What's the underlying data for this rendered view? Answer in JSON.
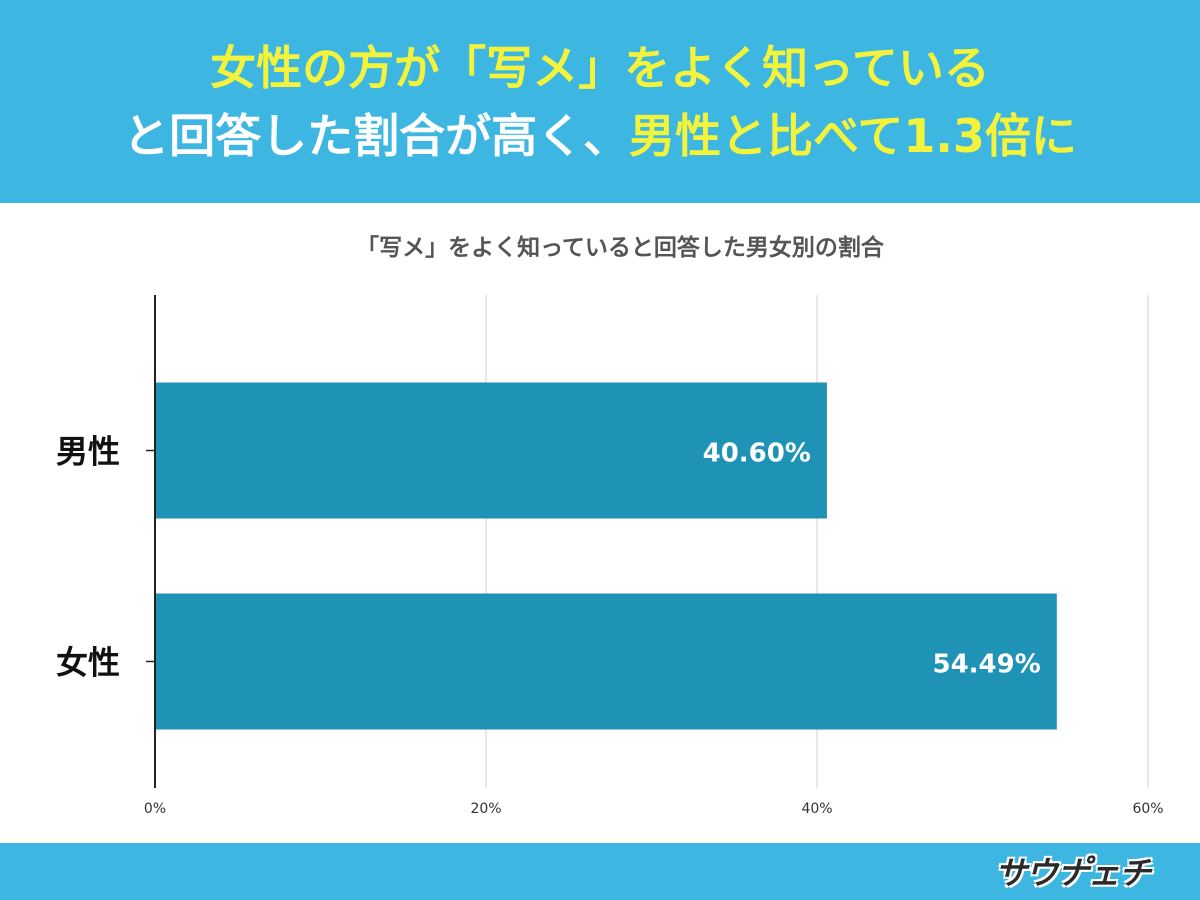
{
  "headline": {
    "line1_highlight": "女性の方が「写メ」をよく知っている",
    "line2_white": "と回答した割合が高く、",
    "line2_highlight": "男性と比べて1.3倍に"
  },
  "logo": {
    "text": "サウナ゚ェチ"
  },
  "colors": {
    "header": "#3db7e1",
    "bar": "#1e93b5",
    "highlight": "#f4f33c"
  },
  "chart_data": {
    "type": "bar",
    "orientation": "horizontal",
    "title": "「写メ」をよく知っていると回答した男女別の割合",
    "categories": [
      "男性",
      "女性"
    ],
    "values": [
      40.6,
      54.49
    ],
    "data_labels": [
      "40.60%",
      "54.49%"
    ],
    "xlim": [
      0,
      60
    ],
    "x_ticks": [
      0,
      20,
      40,
      60
    ],
    "x_tick_labels": [
      "0%",
      "20%",
      "40%",
      "60%"
    ],
    "grid": true,
    "legend": "none"
  }
}
